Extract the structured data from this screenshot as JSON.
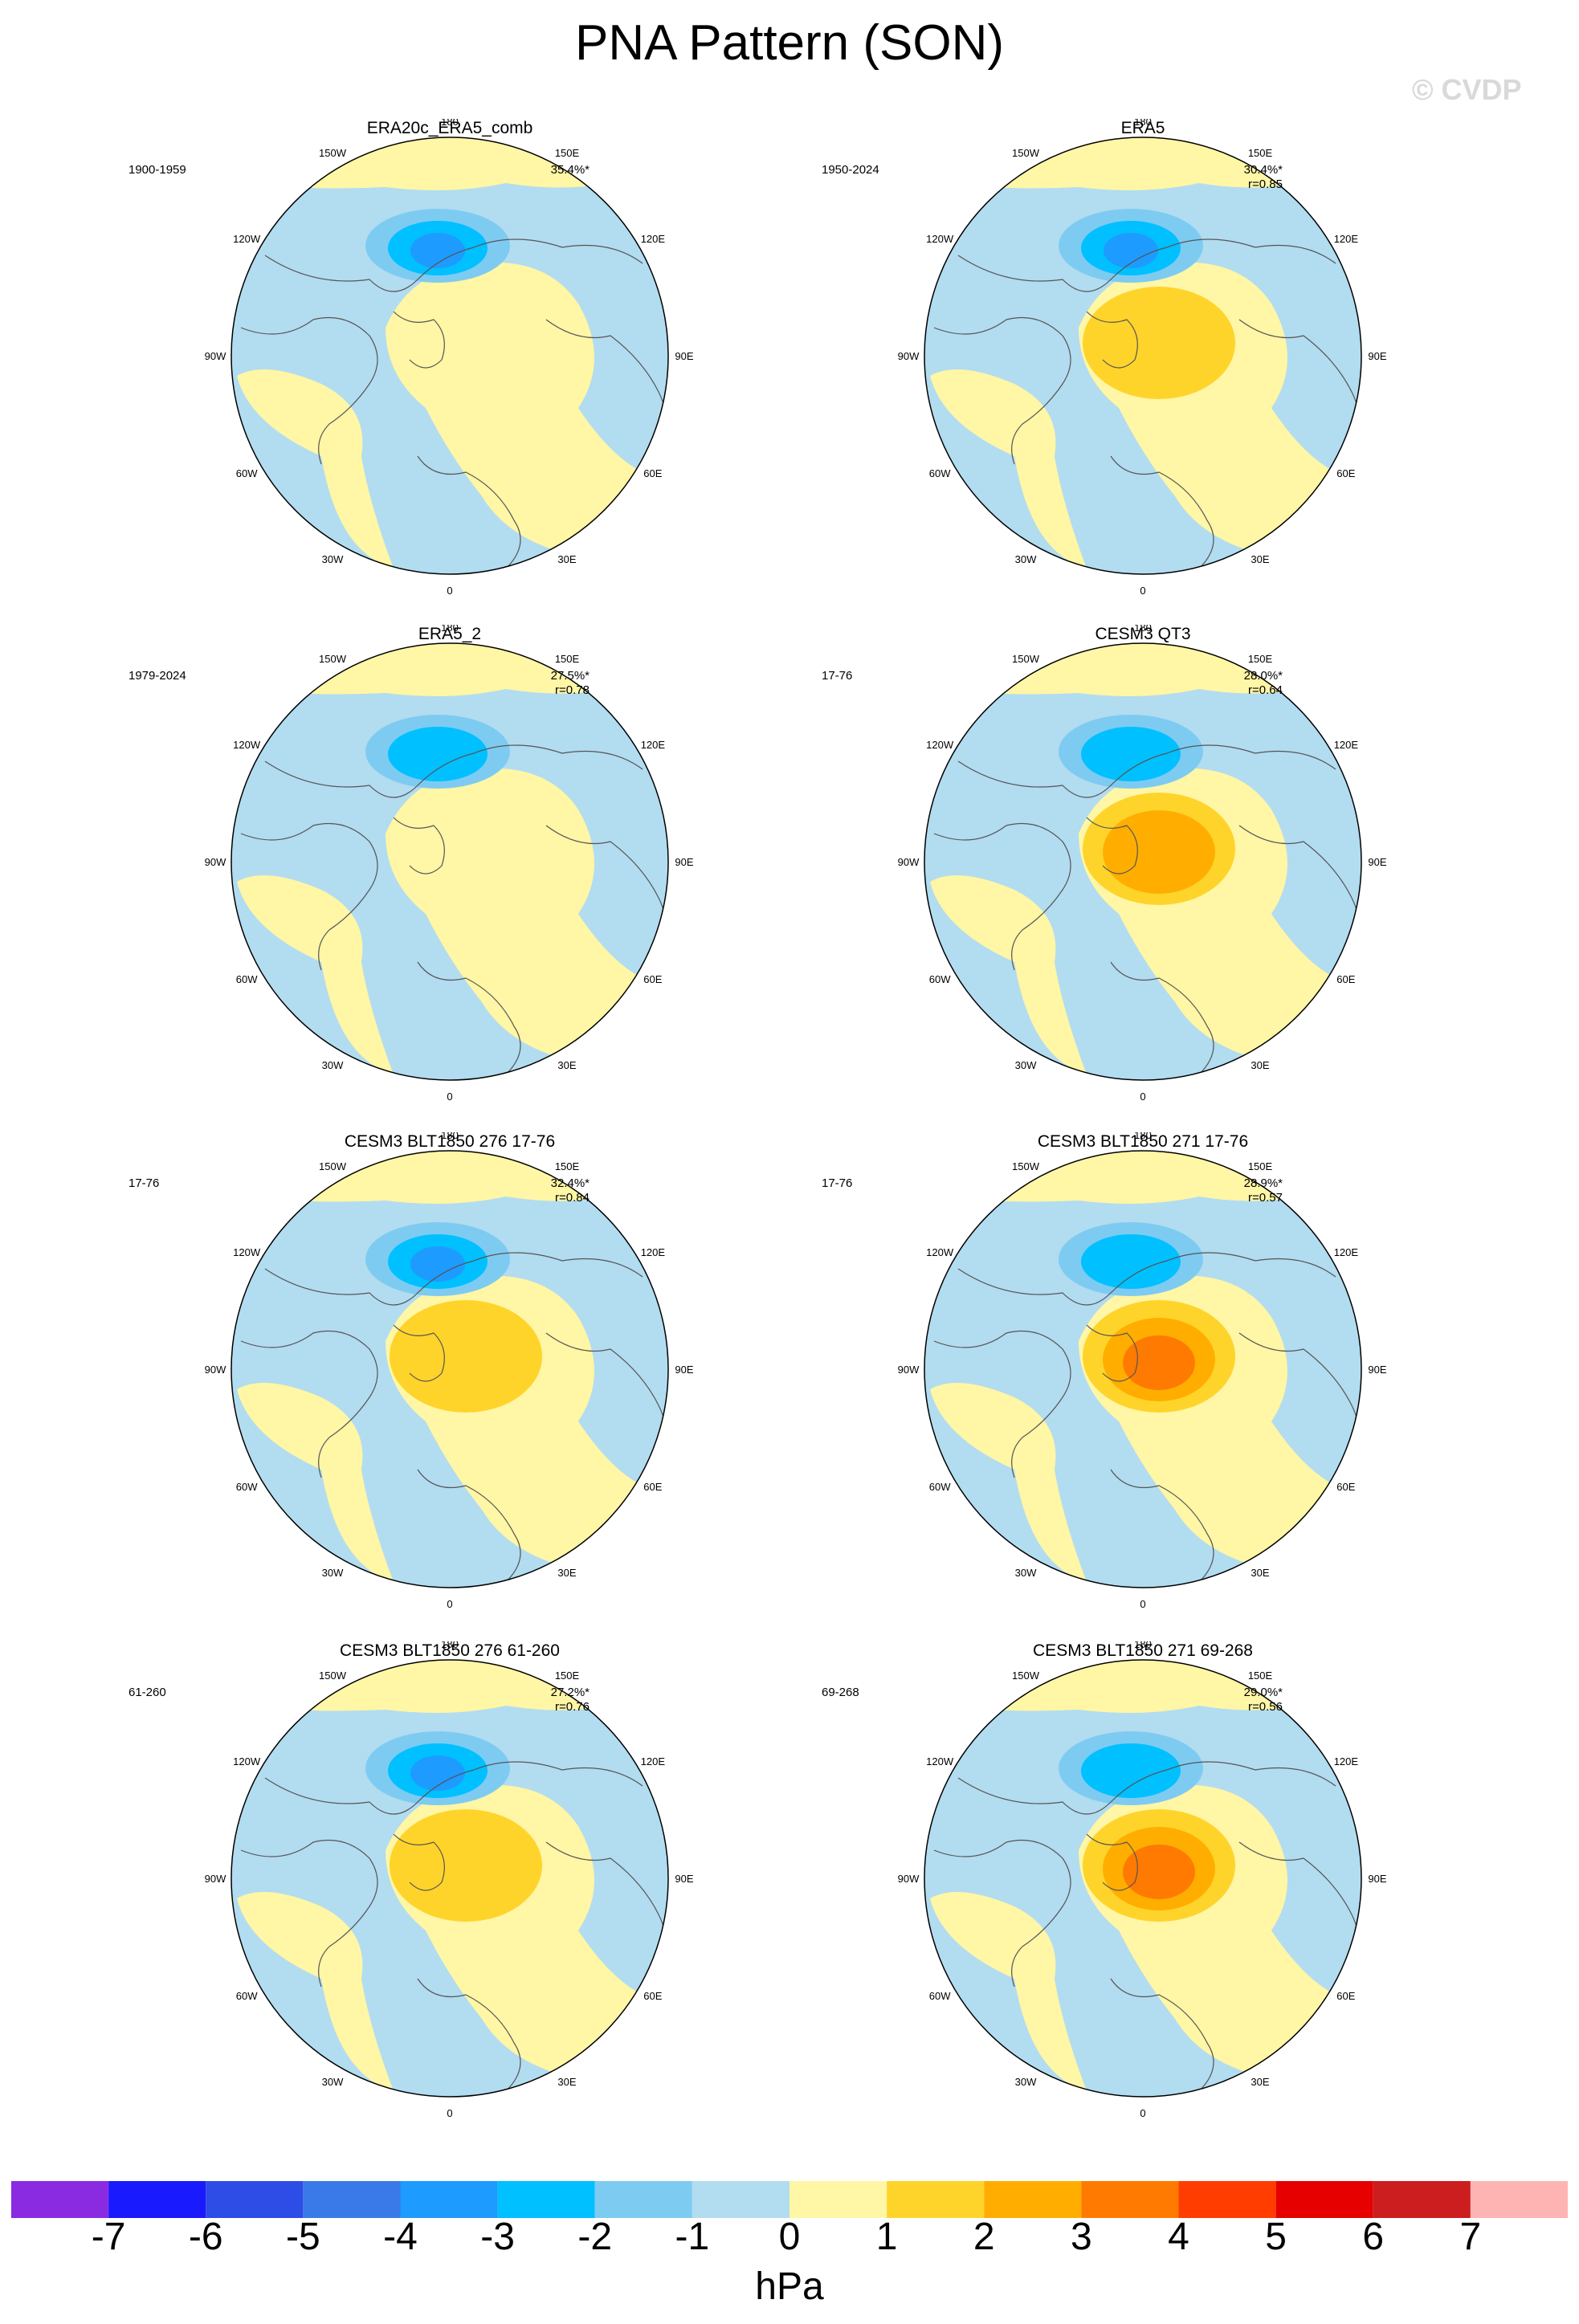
{
  "title": "PNA Pattern (SON)",
  "watermark": "© CVDP",
  "lon_labels": {
    "n180": "180",
    "w150": "150W",
    "e150": "150E",
    "w120": "120W",
    "e120": "120E",
    "w90": "90W",
    "e90": "90E",
    "w60": "60W",
    "e60": "60E",
    "w30": "30W",
    "e30": "30E",
    "s0": "0"
  },
  "panels": [
    {
      "title": "ERA20c_ERA5_comb",
      "period": "1900-1959",
      "pct": "35.4%*",
      "r": "",
      "neg": [
        -1,
        -2,
        -3,
        -4
      ],
      "pos": [
        1
      ]
    },
    {
      "title": "ERA5",
      "period": "1950-2024",
      "pct": "30.4%*",
      "r": "r=0.85",
      "neg": [
        -1,
        -2,
        -3,
        -4
      ],
      "pos": [
        1,
        2
      ]
    },
    {
      "title": "ERA5_2",
      "period": "1979-2024",
      "pct": "27.5%*",
      "r": "r=0.78",
      "neg": [
        -1,
        -2,
        -3
      ],
      "pos": [
        1
      ]
    },
    {
      "title": "CESM3 QT3",
      "period": "17-76",
      "pct": "28.0%*",
      "r": "r=0.64",
      "neg": [
        -1,
        -2,
        -3
      ],
      "pos": [
        1,
        2,
        3
      ]
    },
    {
      "title": "CESM3 BLT1850 276 17-76",
      "period": "17-76",
      "pct": "32.4%*",
      "r": "r=0.84",
      "neg": [
        -1,
        -2,
        -3,
        -4
      ],
      "pos": [
        1,
        2
      ]
    },
    {
      "title": "CESM3 BLT1850 271 17-76",
      "period": "17-76",
      "pct": "28.9%*",
      "r": "r=0.57",
      "neg": [
        -1,
        -2,
        -3
      ],
      "pos": [
        1,
        2,
        3,
        4
      ]
    },
    {
      "title": "CESM3 BLT1850 276 61-260",
      "period": "61-260",
      "pct": "27.2%*",
      "r": "r=0.76",
      "neg": [
        -1,
        -2,
        -3,
        -4
      ],
      "pos": [
        1,
        2
      ]
    },
    {
      "title": "CESM3 BLT1850 271 69-268",
      "period": "69-268",
      "pct": "29.0%*",
      "r": "r=0.56",
      "neg": [
        -1,
        -2,
        -3
      ],
      "pos": [
        1,
        2,
        3,
        4
      ]
    }
  ],
  "colorbar": {
    "unit": "hPa",
    "colors": [
      "#8a2be2",
      "#1a1aff",
      "#2e4de6",
      "#3a7ae8",
      "#1e9bff",
      "#00c0ff",
      "#7ecbf2",
      "#b2dcf0",
      "#fff6a6",
      "#ffd42a",
      "#ffae00",
      "#ff7a00",
      "#ff3d00",
      "#e60000",
      "#cc1e1e",
      "#ffb4b4"
    ],
    "labels": [
      "-7",
      "-6",
      "-5",
      "-4",
      "-3",
      "-2",
      "-1",
      "0",
      "1",
      "2",
      "3",
      "4",
      "5",
      "6",
      "7"
    ]
  }
}
